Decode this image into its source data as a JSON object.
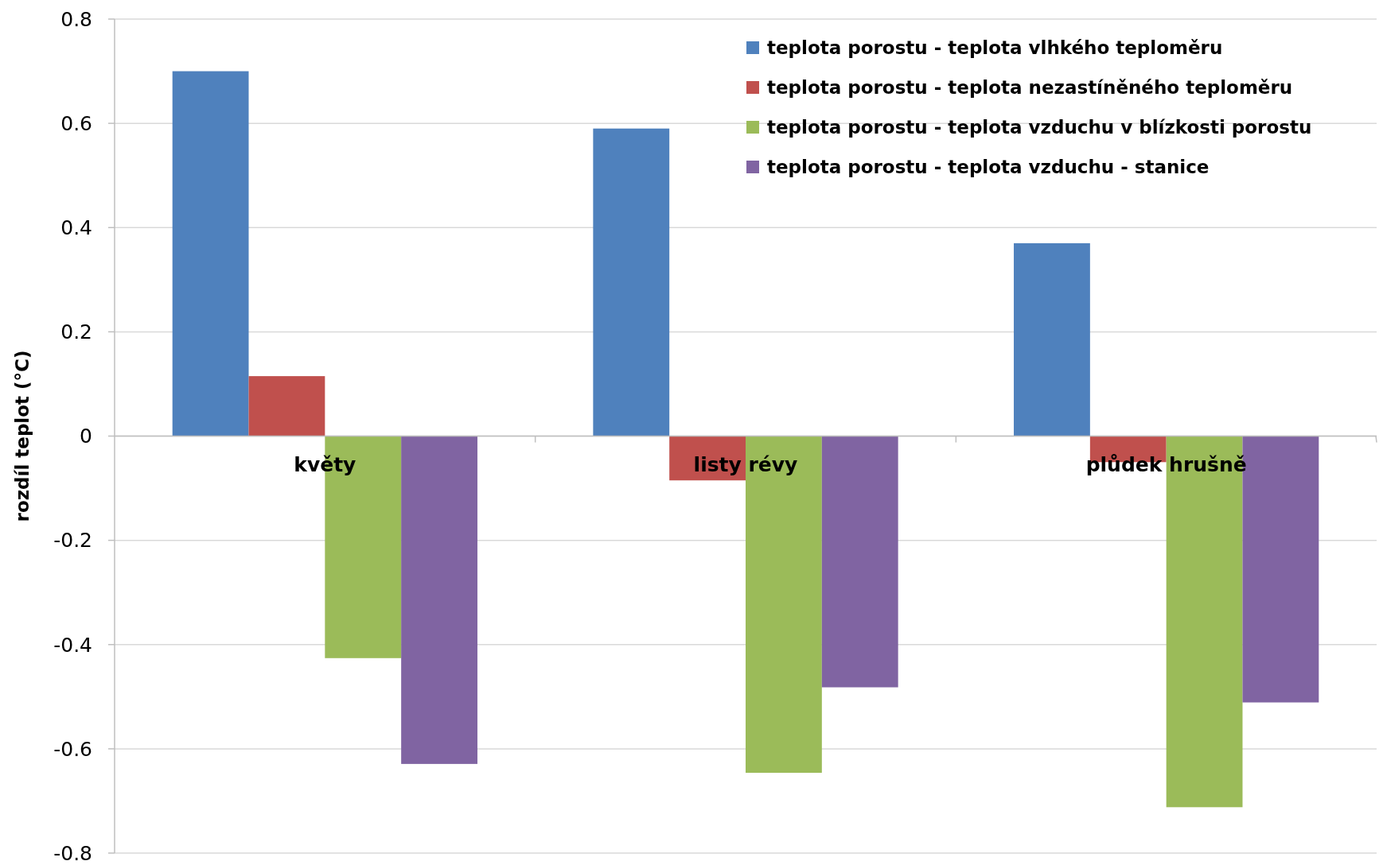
{
  "chart_data": {
    "type": "bar",
    "ylabel": "rozdíl teplot (°C)",
    "categories": [
      "květy",
      "listy révy",
      "plůdek hrušně"
    ],
    "series": [
      {
        "name": "teplota porostu - teplota vlhkého teploměru",
        "color": "#4f81bd",
        "values": [
          0.7,
          0.59,
          0.37
        ]
      },
      {
        "name": "teplota porostu - teplota nezastíněného teploměru",
        "color": "#c0504d",
        "values": [
          0.115,
          -0.085,
          -0.05
        ]
      },
      {
        "name": "teplota porostu - teplota vzduchu v blízkosti porostu",
        "color": "#9bbb59",
        "values": [
          -0.426,
          -0.646,
          -0.712
        ]
      },
      {
        "name": "teplota porostu - teplota vzduchu - stanice",
        "color": "#8064a2",
        "values": [
          -0.629,
          -0.482,
          -0.511
        ]
      }
    ],
    "ylim": [
      -0.8,
      0.8
    ],
    "yticks": [
      -0.8,
      -0.6,
      -0.4,
      -0.2,
      0,
      0.2,
      0.4,
      0.6,
      0.8
    ],
    "grid": "y",
    "legend": "top right"
  }
}
